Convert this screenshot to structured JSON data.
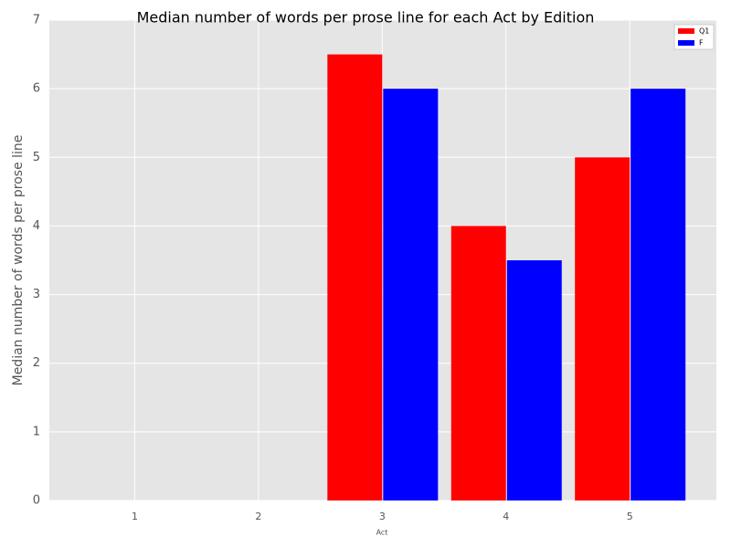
{
  "chart_data": {
    "type": "bar",
    "title": "Median number of words per prose line for each Act by Edition",
    "x_label": "Act",
    "y_label": "Median number of words per prose line",
    "categories": [
      "1",
      "2",
      "3",
      "4",
      "5"
    ],
    "series": [
      {
        "name": "Q1",
        "color": "#ff0000",
        "values": [
          null,
          null,
          6.5,
          4,
          5
        ]
      },
      {
        "name": "F",
        "color": "#0000ff",
        "values": [
          null,
          null,
          6,
          3.5,
          6
        ]
      }
    ],
    "ylim": [
      0,
      7
    ],
    "yticks": [
      0,
      1,
      2,
      3,
      4,
      5,
      6,
      7
    ],
    "grid": true,
    "legend": "upper-right"
  }
}
